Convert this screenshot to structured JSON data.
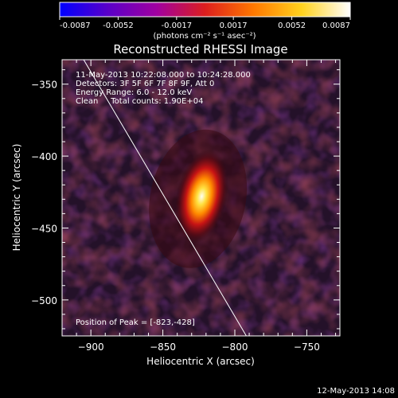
{
  "colorbar": {
    "ticks": [
      "-0.0087",
      "-0.0052",
      "-0.0017",
      "0.0017",
      "0.0052",
      "0.0087"
    ],
    "units_label": "(photons cm⁻² s⁻¹ asec⁻²)"
  },
  "header": {
    "line1": "11-May-2013 10:22:08.000 to 10:24:28.000",
    "line2": "Detectors: 3F 5F 6F 7F 8F 9F, Att 0",
    "line3": "Energy Range: 6.0 - 12.0 keV",
    "line4": "Clean     Total counts: 1.90E+04"
  },
  "peak_label": "Position of Peak = [-823,-428]",
  "footer_date": "12-May-2013 14:08",
  "chart_data": {
    "type": "heatmap",
    "title": "Reconstructed RHESSI Image",
    "xlabel": "Heliocentric X (arcsec)",
    "ylabel": "Heliocentric Y (arcsec)",
    "xlim": [
      -920,
      -727
    ],
    "ylim": [
      -525,
      -333
    ],
    "xticks": [
      -900,
      -850,
      -800,
      -750
    ],
    "yticks": [
      -350,
      -400,
      -450,
      -500
    ],
    "xtick_labels": [
      "−900",
      "−850",
      "−800",
      "−750"
    ],
    "ytick_labels": [
      "−350",
      "−400",
      "−450",
      "−500"
    ],
    "color_range": [
      -0.0087,
      0.0087
    ],
    "colormap": [
      "#0000ff",
      "#5a00c8",
      "#a000a0",
      "#dc1e1e",
      "#ff7800",
      "#ffd21e",
      "#ffffff"
    ],
    "peak": {
      "x": -823,
      "y": -428
    },
    "limb": {
      "x1": -905,
      "y1": -333,
      "x2": -792,
      "y2": -525
    }
  }
}
